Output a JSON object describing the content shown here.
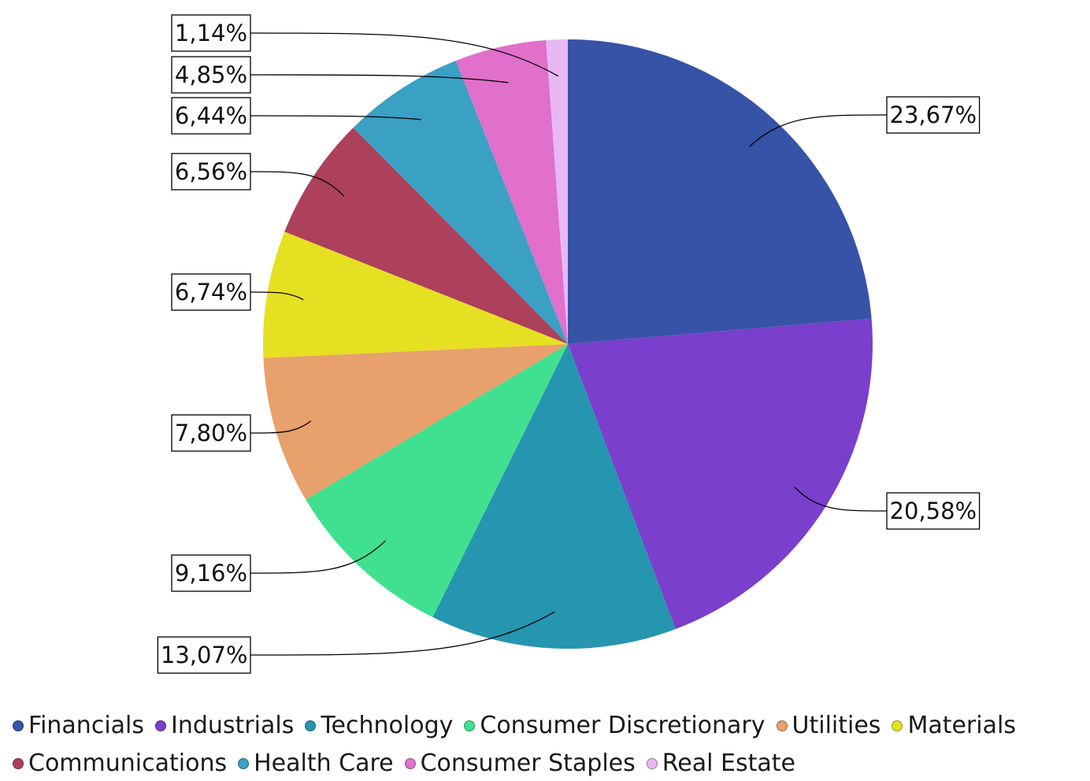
{
  "chart_data": {
    "type": "pie",
    "categories": [
      "Financials",
      "Industrials",
      "Technology",
      "Consumer Discretionary",
      "Utilities",
      "Materials",
      "Communications",
      "Health Care",
      "Consumer Staples",
      "Real Estate"
    ],
    "values": [
      23.67,
      20.58,
      13.07,
      9.16,
      7.8,
      6.74,
      6.56,
      6.44,
      4.85,
      1.14
    ],
    "data_labels": [
      "23,67%",
      "20,58%",
      "13,07%",
      "9,16%",
      "7,80%",
      "6,74%",
      "6,56%",
      "6,44%",
      "4,85%",
      "1,14%"
    ],
    "colors": [
      "#3653a8",
      "#7a3fcc",
      "#2695b0",
      "#3fe090",
      "#e8a06c",
      "#e6e022",
      "#ad405a",
      "#3aa0c4",
      "#e070cb",
      "#e8b8f4"
    ],
    "start_angle": "12 o'clock",
    "direction": "clockwise",
    "legend_position": "bottom"
  }
}
